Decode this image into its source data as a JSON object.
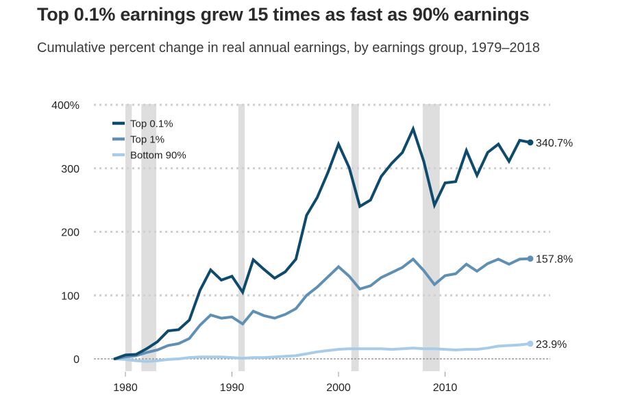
{
  "chart_data": {
    "type": "line",
    "title": "Top 0.1% earnings grew 15 times as fast as 90% earnings",
    "subtitle": "Cumulative percent change in real annual earnings, by earnings group, 1979–2018",
    "xlabel": "",
    "ylabel": "",
    "xlim": [
      1979,
      2018
    ],
    "ylim": [
      0,
      400
    ],
    "x_ticks": [
      1980,
      1990,
      2000,
      2010
    ],
    "x_tick_labels": [
      "1980",
      "1990",
      "2000",
      "2010"
    ],
    "y_ticks": [
      0,
      100,
      200,
      300,
      400
    ],
    "y_tick_labels": [
      "0",
      "100",
      "200",
      "300",
      "400%"
    ],
    "grid": "horizontal dotted",
    "legend_position": "top-left",
    "recessions": [
      [
        1980.0,
        1980.6
      ],
      [
        1981.5,
        1982.9
      ],
      [
        1990.6,
        1991.2
      ],
      [
        2001.2,
        2001.9
      ],
      [
        2007.9,
        2009.5
      ]
    ],
    "x": [
      1979,
      1980,
      1981,
      1982,
      1983,
      1984,
      1985,
      1986,
      1987,
      1988,
      1989,
      1990,
      1991,
      1992,
      1993,
      1994,
      1995,
      1996,
      1997,
      1998,
      1999,
      2000,
      2001,
      2002,
      2003,
      2004,
      2005,
      2006,
      2007,
      2008,
      2009,
      2010,
      2011,
      2012,
      2013,
      2014,
      2015,
      2016,
      2017,
      2018
    ],
    "series": [
      {
        "name": "Top 0.1%",
        "color": "#0d4a6c",
        "end_label": "340.7%",
        "values": [
          0,
          6,
          7,
          16,
          27,
          44,
          46,
          61,
          108,
          140,
          124,
          130,
          105,
          156,
          141,
          127,
          137,
          157,
          226,
          254,
          293,
          338,
          301,
          240,
          250,
          287,
          308,
          325,
          362,
          311,
          242,
          277,
          279,
          328,
          289,
          325,
          338,
          311,
          344,
          340.7
        ]
      },
      {
        "name": "Top 1%",
        "color": "#5f8fb3",
        "end_label": "157.8%",
        "values": [
          0,
          3,
          5,
          10,
          14,
          21,
          24,
          32,
          53,
          69,
          64,
          66,
          55,
          75,
          68,
          64,
          70,
          79,
          100,
          113,
          129,
          145,
          130,
          110,
          115,
          128,
          136,
          144,
          157,
          139,
          117,
          131,
          134,
          149,
          138,
          150,
          157,
          149,
          157,
          157.8
        ]
      },
      {
        "name": "Bottom 90%",
        "color": "#a8cbe9",
        "end_label": "23.9%",
        "values": [
          0,
          -1,
          -3,
          -4,
          -3,
          -1,
          0,
          2,
          3,
          3,
          3,
          2,
          1,
          2,
          2,
          3,
          4,
          5,
          8,
          11,
          13,
          15,
          16,
          16,
          16,
          16,
          15,
          16,
          17,
          16,
          16,
          15,
          14,
          15,
          15,
          17,
          20,
          21,
          22,
          23.9
        ]
      }
    ]
  },
  "colors": {
    "recession_bar": "#dedede",
    "grid": "#cfcfcf",
    "zero_line": "#9a9a9a"
  }
}
